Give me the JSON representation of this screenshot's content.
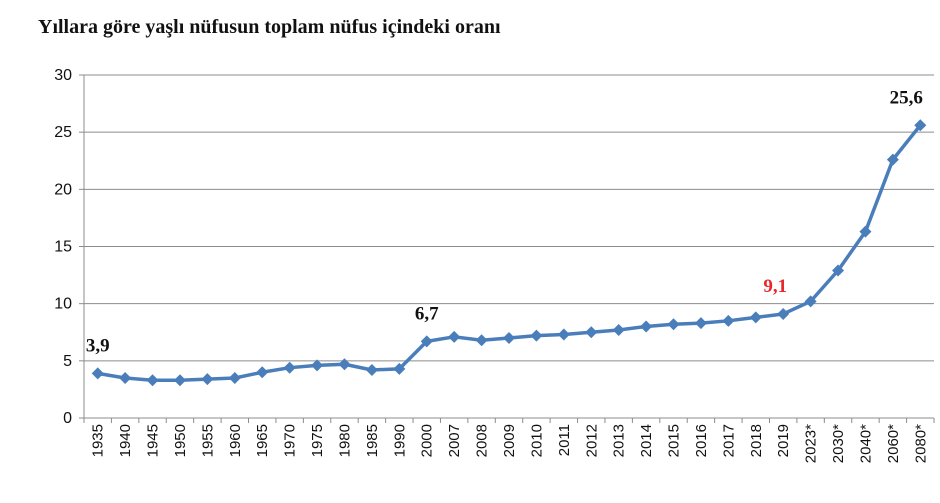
{
  "chart_data": {
    "type": "line",
    "title": "Yıllara göre yaşlı nüfusun toplam nüfus içindeki oranı",
    "xlabel": "",
    "ylabel": "",
    "ylim": [
      0,
      30
    ],
    "yticks": [
      0,
      5,
      10,
      15,
      20,
      25,
      30
    ],
    "grid": true,
    "legend": "none",
    "line_color": "#4a7ebb",
    "categories": [
      "1935",
      "1940",
      "1945",
      "1950",
      "1955",
      "1960",
      "1965",
      "1970",
      "1975",
      "1980",
      "1985",
      "1990",
      "2000",
      "2007",
      "2008",
      "2009",
      "2010",
      "2011",
      "2012",
      "2013",
      "2014",
      "2015",
      "2016",
      "2017",
      "2018",
      "2019",
      "2023*",
      "2030*",
      "2040*",
      "2060*",
      "2080*"
    ],
    "series": [
      {
        "values": [
          3.9,
          3.5,
          3.3,
          3.3,
          3.4,
          3.5,
          4.0,
          4.4,
          4.6,
          4.7,
          4.2,
          4.3,
          6.7,
          7.1,
          6.8,
          7.0,
          7.2,
          7.3,
          7.5,
          7.7,
          8.0,
          8.2,
          8.3,
          8.5,
          8.8,
          9.1,
          10.2,
          12.9,
          16.3,
          22.6,
          25.6
        ]
      }
    ],
    "annotations": [
      {
        "category": "1935",
        "text": "3,9",
        "color": "#111111"
      },
      {
        "category": "2000",
        "text": "6,7",
        "color": "#111111"
      },
      {
        "category": "2019",
        "text": "9,1",
        "color": "#e8262a"
      },
      {
        "category": "2080*",
        "text": "25,6",
        "color": "#111111"
      }
    ]
  }
}
